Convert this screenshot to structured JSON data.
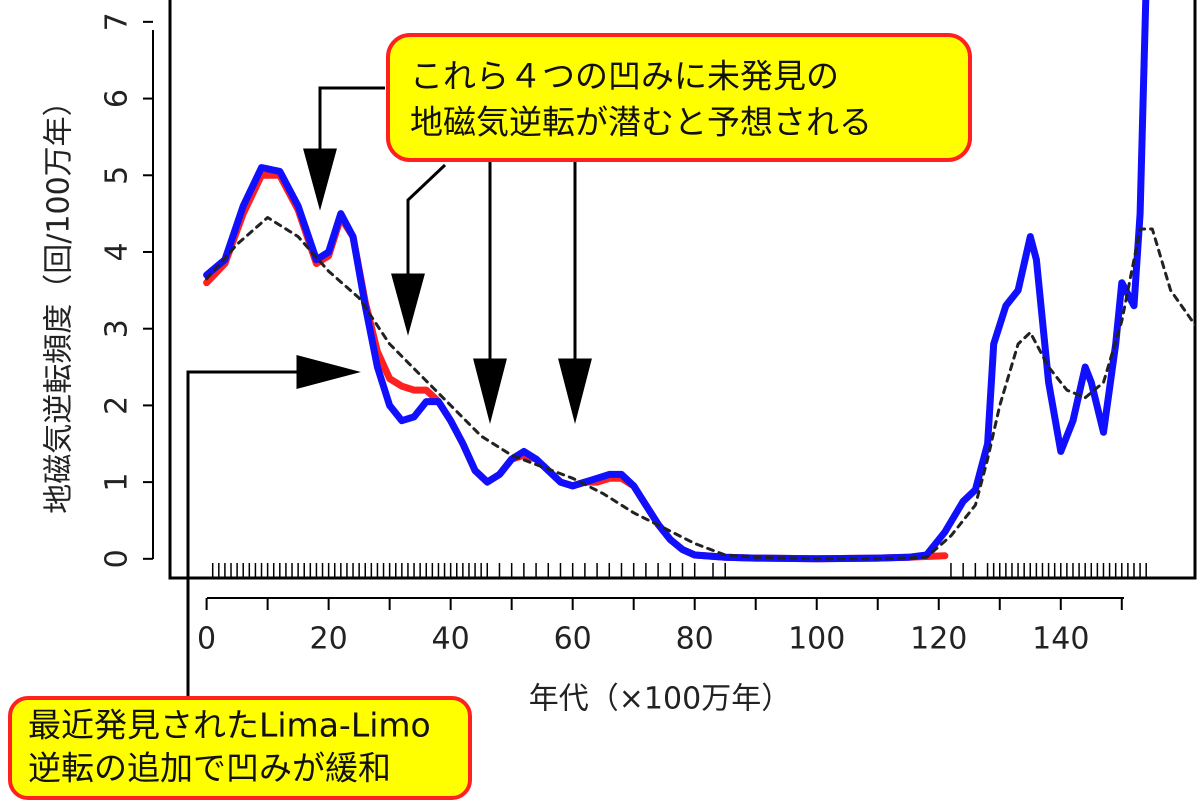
{
  "chart_data": {
    "type": "line",
    "xlabel": "年代（×100万年）",
    "ylabel": "地磁気逆転頻度（回/100万年）",
    "xlim": [
      -6,
      162
    ],
    "ylim": [
      -0.25,
      7.35
    ],
    "xticks": [
      0,
      20,
      40,
      60,
      80,
      100,
      120,
      140
    ],
    "xminorticks": [
      10,
      30,
      50,
      70,
      90,
      110,
      130,
      150
    ],
    "yticks": [
      0,
      1,
      2,
      3,
      4,
      5,
      6,
      7
    ],
    "series": [
      {
        "color": "#ff2020",
        "dash": false,
        "x": [
          0,
          3,
          6,
          9,
          12,
          15,
          18,
          20,
          22,
          24,
          26,
          28,
          30,
          32,
          34,
          36,
          38,
          40,
          42,
          44,
          46,
          48,
          50,
          52,
          54,
          56,
          58,
          60,
          62,
          64,
          66,
          68,
          70,
          72,
          74,
          76,
          78,
          80,
          85,
          90,
          100,
          110,
          115,
          121
        ],
        "values": [
          3.6,
          3.85,
          4.5,
          5.0,
          5.0,
          4.55,
          3.85,
          3.95,
          4.45,
          4.2,
          3.35,
          2.7,
          2.35,
          2.25,
          2.2,
          2.2,
          2.05,
          1.8,
          1.5,
          1.15,
          1.0,
          1.1,
          1.3,
          1.35,
          1.3,
          1.15,
          1.0,
          0.95,
          1.0,
          1.0,
          1.05,
          1.05,
          0.95,
          0.7,
          0.45,
          0.25,
          0.12,
          0.05,
          0.02,
          0.01,
          0,
          0.01,
          0.02,
          0.04
        ]
      },
      {
        "color": "#1010ff",
        "dash": false,
        "x": [
          0,
          3,
          6,
          9,
          12,
          15,
          18,
          20,
          22,
          24,
          26,
          28,
          30,
          32,
          34,
          36,
          38,
          40,
          42,
          44,
          46,
          48,
          50,
          52,
          54,
          56,
          58,
          60,
          62,
          64,
          66,
          68,
          70,
          72,
          74,
          76,
          78,
          80,
          85,
          90,
          100,
          110,
          115,
          118,
          121,
          124,
          126,
          128,
          129,
          131,
          133,
          135,
          136,
          138,
          140,
          142,
          144,
          145,
          147,
          149,
          150,
          152,
          153,
          154
        ],
        "values": [
          3.7,
          3.9,
          4.6,
          5.1,
          5.05,
          4.6,
          3.9,
          4.0,
          4.5,
          4.2,
          3.3,
          2.5,
          2.0,
          1.8,
          1.85,
          2.05,
          2.05,
          1.8,
          1.5,
          1.15,
          1.0,
          1.1,
          1.3,
          1.4,
          1.3,
          1.15,
          1.0,
          0.95,
          1.0,
          1.05,
          1.1,
          1.1,
          0.95,
          0.7,
          0.45,
          0.25,
          0.12,
          0.05,
          0.02,
          0.01,
          0,
          0.01,
          0.02,
          0.05,
          0.35,
          0.75,
          0.9,
          1.5,
          2.8,
          3.3,
          3.5,
          4.2,
          3.9,
          2.3,
          1.4,
          1.8,
          2.5,
          2.3,
          1.65,
          2.8,
          3.6,
          3.3,
          4.5,
          7.5
        ]
      },
      {
        "color": "#222222",
        "dash": true,
        "x": [
          0,
          5,
          10,
          15,
          20,
          25,
          30,
          35,
          40,
          45,
          50,
          55,
          60,
          65,
          70,
          75,
          80,
          85,
          90,
          100,
          110,
          118,
          122,
          126,
          128,
          130,
          133,
          135,
          138,
          141,
          144,
          147,
          150,
          153,
          155,
          158,
          162
        ],
        "values": [
          3.65,
          4.1,
          4.45,
          4.2,
          3.75,
          3.4,
          2.8,
          2.4,
          2.0,
          1.6,
          1.35,
          1.2,
          1.05,
          0.85,
          0.6,
          0.4,
          0.2,
          0.05,
          0.02,
          0,
          0,
          0.02,
          0.3,
          0.7,
          1.3,
          2.0,
          2.8,
          2.95,
          2.5,
          2.2,
          2.1,
          2.3,
          3.1,
          4.3,
          4.3,
          3.5,
          3.05
        ]
      }
    ],
    "rug": [
      1,
      2,
      3,
      4,
      5,
      6,
      7,
      8,
      9,
      10,
      11,
      12,
      13,
      14,
      15,
      16,
      17,
      18,
      19,
      20,
      21,
      22,
      23,
      24,
      25,
      26,
      27,
      28,
      29,
      30,
      31,
      32,
      33,
      34,
      35,
      36,
      37,
      38,
      39,
      40,
      41,
      42,
      43,
      44,
      45,
      46,
      48,
      50,
      52,
      54,
      56,
      58,
      60,
      62,
      64,
      66,
      68,
      70,
      72,
      74,
      76,
      78,
      80,
      83,
      85,
      122,
      124,
      126,
      128,
      129,
      130,
      131,
      132,
      133,
      134,
      135,
      136,
      137,
      138,
      139,
      140,
      141,
      142,
      143,
      144,
      145,
      146,
      147,
      148,
      149,
      150,
      151,
      152,
      153,
      154
    ],
    "annotations": [
      [
        "これら４つの凹みに未発見の",
        "地磁気逆転が潜むと予想される"
      ],
      [
        "最近発見されたLima-Limo",
        "逆転の追加で凹みが緩和"
      ]
    ]
  }
}
